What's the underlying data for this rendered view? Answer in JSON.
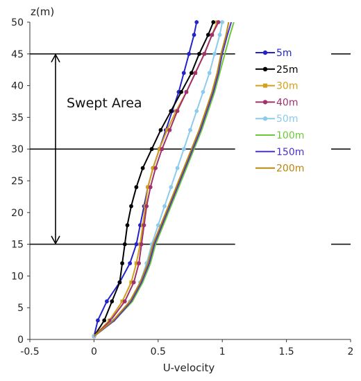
{
  "chart_data": {
    "type": "line",
    "title": "",
    "xlabel": "U-velocity",
    "ylabel": "z(m)",
    "xlim": [
      -0.5,
      2
    ],
    "ylim": [
      0,
      50
    ],
    "x_ticks": [
      "-0.5",
      "0",
      "0.5",
      "1",
      "1.5",
      "2"
    ],
    "y_ticks": [
      "0",
      "5",
      "10",
      "15",
      "20",
      "25",
      "30",
      "35",
      "40",
      "45",
      "50"
    ],
    "legend_position": "right",
    "grid": false,
    "annotations": {
      "swept_area_label": "Swept Area",
      "swept_area_range": [
        15,
        45
      ],
      "reference_lines": [
        15,
        30,
        45
      ]
    },
    "series": [
      {
        "name": "5m",
        "color": "#2323c8",
        "marker": "circle",
        "points": [
          [
            0.0,
            0.5
          ],
          [
            0.03,
            3
          ],
          [
            0.1,
            6
          ],
          [
            0.2,
            9
          ],
          [
            0.28,
            12
          ],
          [
            0.33,
            15
          ],
          [
            0.36,
            18
          ],
          [
            0.39,
            21
          ],
          [
            0.42,
            24
          ],
          [
            0.46,
            27
          ],
          [
            0.51,
            30
          ],
          [
            0.56,
            33
          ],
          [
            0.61,
            36
          ],
          [
            0.66,
            39
          ],
          [
            0.7,
            42
          ],
          [
            0.74,
            45
          ],
          [
            0.78,
            48
          ],
          [
            0.8,
            50
          ]
        ]
      },
      {
        "name": "25m",
        "color": "#000000",
        "marker": "circle",
        "points": [
          [
            0.0,
            0.5
          ],
          [
            0.08,
            3
          ],
          [
            0.14,
            6
          ],
          [
            0.2,
            9
          ],
          [
            0.22,
            12
          ],
          [
            0.24,
            15
          ],
          [
            0.26,
            18
          ],
          [
            0.29,
            21
          ],
          [
            0.33,
            24
          ],
          [
            0.38,
            27
          ],
          [
            0.45,
            30
          ],
          [
            0.52,
            33
          ],
          [
            0.6,
            36
          ],
          [
            0.68,
            39
          ],
          [
            0.76,
            42
          ],
          [
            0.82,
            45
          ],
          [
            0.89,
            48
          ],
          [
            0.93,
            50
          ]
        ]
      },
      {
        "name": "30m",
        "color": "#d4a017",
        "marker": "square",
        "points": [
          [
            0.0,
            0.5
          ],
          [
            0.12,
            3
          ],
          [
            0.22,
            6
          ],
          [
            0.29,
            9
          ],
          [
            0.33,
            12
          ],
          [
            0.36,
            15
          ],
          [
            0.38,
            18
          ],
          [
            0.4,
            21
          ],
          [
            0.42,
            24
          ],
          [
            0.46,
            27
          ],
          [
            0.51,
            30
          ],
          [
            0.57,
            33
          ],
          [
            0.64,
            36
          ],
          [
            0.72,
            39
          ],
          [
            0.79,
            42
          ],
          [
            0.86,
            45
          ],
          [
            0.92,
            48
          ],
          [
            0.96,
            50
          ]
        ]
      },
      {
        "name": "40m",
        "color": "#a0306e",
        "marker": "circle",
        "points": [
          [
            0.0,
            0.5
          ],
          [
            0.13,
            3
          ],
          [
            0.24,
            6
          ],
          [
            0.31,
            9
          ],
          [
            0.35,
            12
          ],
          [
            0.37,
            15
          ],
          [
            0.39,
            18
          ],
          [
            0.41,
            21
          ],
          [
            0.44,
            24
          ],
          [
            0.48,
            27
          ],
          [
            0.53,
            30
          ],
          [
            0.59,
            33
          ],
          [
            0.65,
            36
          ],
          [
            0.72,
            39
          ],
          [
            0.79,
            42
          ],
          [
            0.86,
            45
          ],
          [
            0.92,
            48
          ],
          [
            0.97,
            50
          ]
        ]
      },
      {
        "name": "50m",
        "color": "#8ccbee",
        "marker": "circle",
        "points": [
          [
            0.0,
            0.5
          ],
          [
            0.15,
            3
          ],
          [
            0.28,
            6
          ],
          [
            0.36,
            9
          ],
          [
            0.41,
            12
          ],
          [
            0.45,
            15
          ],
          [
            0.5,
            18
          ],
          [
            0.55,
            21
          ],
          [
            0.6,
            24
          ],
          [
            0.65,
            27
          ],
          [
            0.7,
            30
          ],
          [
            0.75,
            33
          ],
          [
            0.8,
            36
          ],
          [
            0.85,
            39
          ],
          [
            0.9,
            42
          ],
          [
            0.94,
            45
          ],
          [
            0.98,
            48
          ],
          [
            1.0,
            50
          ]
        ]
      },
      {
        "name": "100m",
        "color": "#6cc83a",
        "marker": "none",
        "points": [
          [
            0.0,
            0.5
          ],
          [
            0.16,
            3
          ],
          [
            0.3,
            6
          ],
          [
            0.38,
            9
          ],
          [
            0.44,
            12
          ],
          [
            0.48,
            15
          ],
          [
            0.54,
            18
          ],
          [
            0.6,
            21
          ],
          [
            0.66,
            24
          ],
          [
            0.72,
            27
          ],
          [
            0.78,
            30
          ],
          [
            0.84,
            33
          ],
          [
            0.89,
            36
          ],
          [
            0.94,
            39
          ],
          [
            0.98,
            42
          ],
          [
            1.02,
            45
          ],
          [
            1.06,
            48
          ],
          [
            1.09,
            50
          ]
        ]
      },
      {
        "name": "150m",
        "color": "#4a32c8",
        "marker": "none",
        "points": [
          [
            0.0,
            0.5
          ],
          [
            0.16,
            3
          ],
          [
            0.29,
            6
          ],
          [
            0.37,
            9
          ],
          [
            0.43,
            12
          ],
          [
            0.47,
            15
          ],
          [
            0.53,
            18
          ],
          [
            0.59,
            21
          ],
          [
            0.65,
            24
          ],
          [
            0.71,
            27
          ],
          [
            0.77,
            30
          ],
          [
            0.83,
            33
          ],
          [
            0.88,
            36
          ],
          [
            0.93,
            39
          ],
          [
            0.97,
            42
          ],
          [
            1.0,
            45
          ],
          [
            1.04,
            48
          ],
          [
            1.07,
            50
          ]
        ]
      },
      {
        "name": "200m",
        "color": "#b8860b",
        "marker": "none",
        "points": [
          [
            0.0,
            0.5
          ],
          [
            0.15,
            3
          ],
          [
            0.28,
            6
          ],
          [
            0.36,
            9
          ],
          [
            0.42,
            12
          ],
          [
            0.46,
            15
          ],
          [
            0.52,
            18
          ],
          [
            0.58,
            21
          ],
          [
            0.64,
            24
          ],
          [
            0.7,
            27
          ],
          [
            0.76,
            30
          ],
          [
            0.82,
            33
          ],
          [
            0.87,
            36
          ],
          [
            0.92,
            39
          ],
          [
            0.96,
            42
          ],
          [
            0.99,
            45
          ],
          [
            1.03,
            48
          ],
          [
            1.05,
            50
          ]
        ]
      }
    ]
  }
}
